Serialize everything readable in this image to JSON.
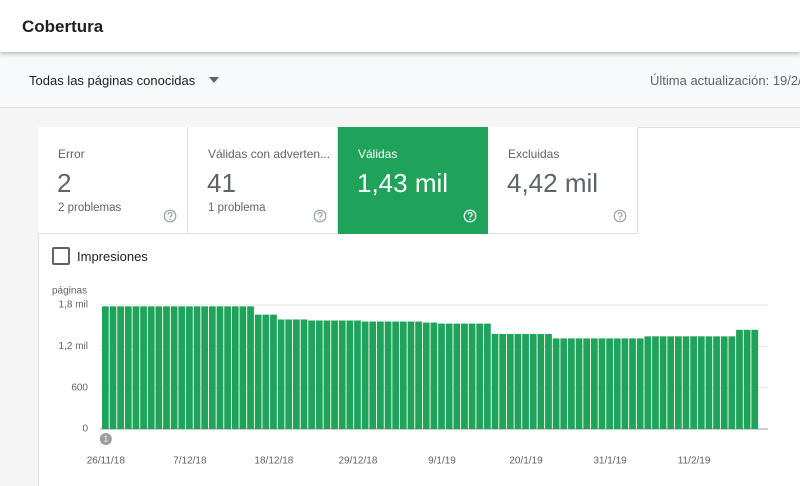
{
  "header": {
    "title": "Cobertura"
  },
  "toolbar": {
    "filter": "Todas las páginas conocidas",
    "last_update": "Última actualización: 19/2/"
  },
  "tabs": [
    {
      "label": "Error",
      "value": "2",
      "detail": "2 problemas"
    },
    {
      "label": "Válidas con adverten...",
      "value": "41",
      "detail": "1 problema"
    },
    {
      "label": "Válidas",
      "value": "1,43 mil",
      "selected": true
    },
    {
      "label": "Excluidas",
      "value": "4,42 mil"
    }
  ],
  "checkbox": {
    "label": "Impresiones"
  },
  "chart_data": {
    "type": "bar",
    "y_label": "páginas",
    "annotation": "1",
    "color": "#1fa25a",
    "grid": true,
    "categories": [
      "26/11/18",
      null,
      null,
      null,
      null,
      null,
      null,
      null,
      null,
      null,
      null,
      "7/12/18",
      null,
      null,
      null,
      null,
      null,
      null,
      null,
      null,
      null,
      null,
      "18/12/18",
      null,
      null,
      null,
      null,
      null,
      null,
      null,
      null,
      null,
      null,
      "29/12/18",
      null,
      null,
      null,
      null,
      null,
      null,
      null,
      null,
      null,
      null,
      "9/1/19",
      null,
      null,
      null,
      null,
      null,
      null,
      null,
      null,
      null,
      null,
      "20/1/19",
      null,
      null,
      null,
      null,
      null,
      null,
      null,
      null,
      null,
      null,
      "31/1/19",
      null,
      null,
      null,
      null,
      null,
      null,
      null,
      null,
      null,
      null,
      "11/2/19",
      null,
      null,
      null,
      null,
      null,
      null,
      null,
      null
    ],
    "values": [
      1780,
      1780,
      1780,
      1780,
      1780,
      1780,
      1780,
      1780,
      1780,
      1780,
      1780,
      1780,
      1780,
      1780,
      1780,
      1780,
      1780,
      1780,
      1780,
      1780,
      1660,
      1660,
      1660,
      1590,
      1590,
      1590,
      1590,
      1575,
      1575,
      1575,
      1575,
      1575,
      1575,
      1575,
      1560,
      1560,
      1560,
      1560,
      1560,
      1560,
      1560,
      1560,
      1545,
      1545,
      1530,
      1530,
      1530,
      1530,
      1530,
      1530,
      1530,
      1380,
      1380,
      1380,
      1380,
      1380,
      1380,
      1380,
      1380,
      1315,
      1315,
      1315,
      1315,
      1315,
      1315,
      1315,
      1315,
      1315,
      1315,
      1315,
      1315,
      1345,
      1345,
      1345,
      1345,
      1345,
      1345,
      1345,
      1345,
      1345,
      1345,
      1345,
      1345,
      1440,
      1440,
      1440
    ],
    "ylim": [
      0,
      1800
    ],
    "yticks": [
      0,
      600,
      {
        "value": 1200,
        "label": "1,2 mil"
      },
      {
        "value": 1800,
        "label": "1,8 mil"
      }
    ]
  }
}
